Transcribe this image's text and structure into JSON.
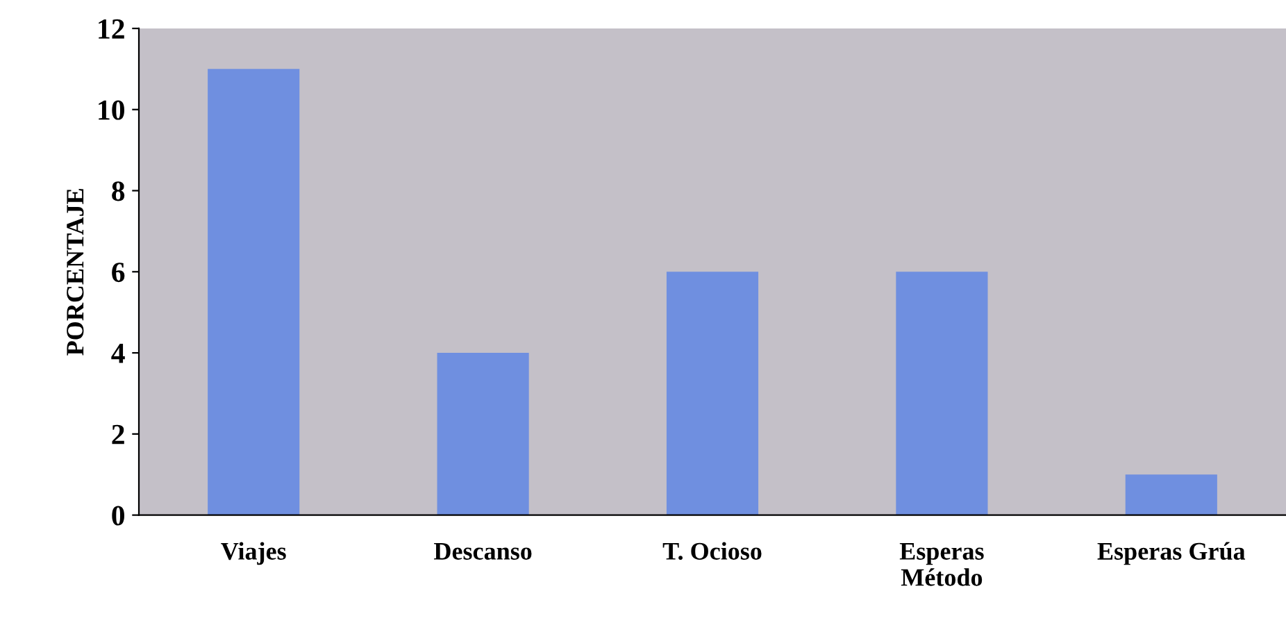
{
  "chart_data": {
    "type": "bar",
    "ylabel": "PORCENTAJE",
    "categories": [
      "Viajes",
      "Descanso",
      "T. Ocioso",
      "Esperas\nMétodo",
      "Esperas Grúa"
    ],
    "values": [
      11,
      4,
      6,
      6,
      1
    ],
    "color": "#6f8fe0",
    "ylim": [
      0,
      12
    ],
    "yticks": [
      0,
      2,
      4,
      6,
      8,
      10,
      12
    ],
    "grid": false,
    "legend": false
  }
}
